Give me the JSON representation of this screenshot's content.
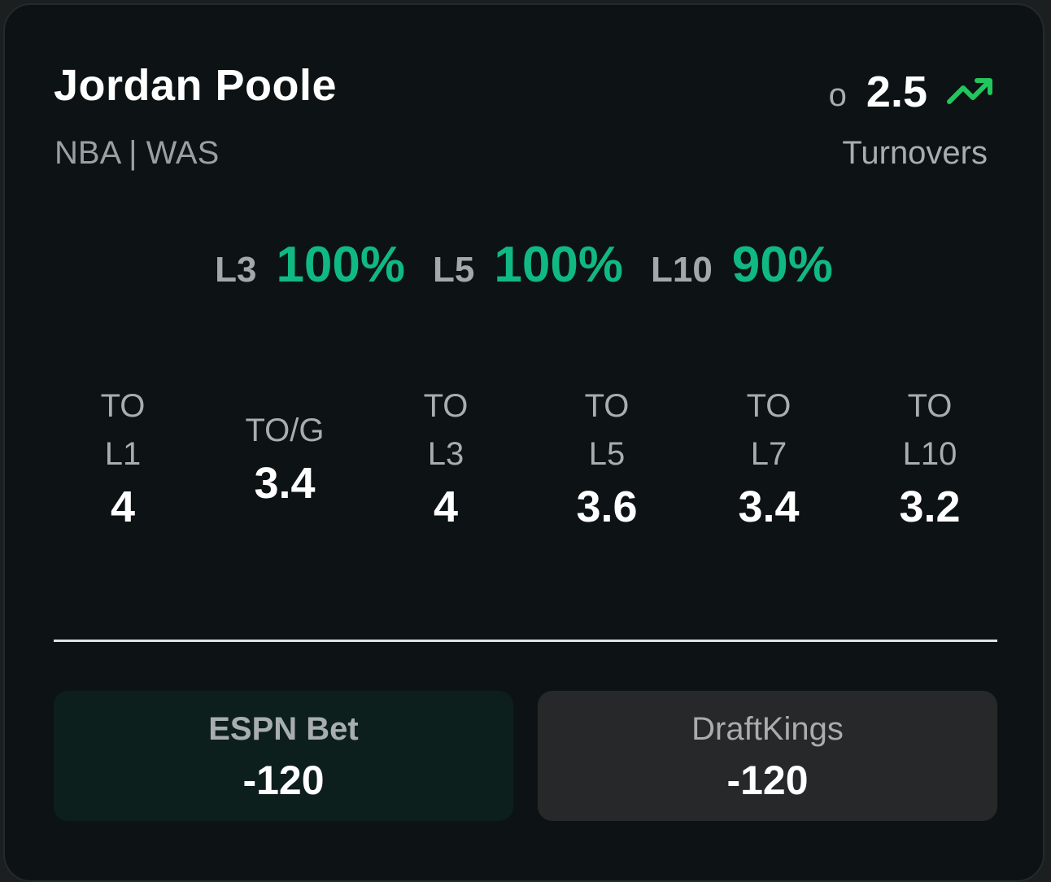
{
  "player": {
    "name": "Jordan Poole",
    "meta": "NBA | WAS"
  },
  "line": {
    "side": "o",
    "value": "2.5",
    "prop": "Turnovers",
    "trend_icon": "trending-up-icon",
    "trend_color": "#22c55e"
  },
  "hit_rates": [
    {
      "label": "L3",
      "value": "100%"
    },
    {
      "label": "L5",
      "value": "100%"
    },
    {
      "label": "L10",
      "value": "90%"
    }
  ],
  "stats": [
    {
      "label": "TO\nL1",
      "value": "4"
    },
    {
      "label": "TO/G",
      "value": "3.4"
    },
    {
      "label": "TO\nL3",
      "value": "4"
    },
    {
      "label": "TO\nL5",
      "value": "3.6"
    },
    {
      "label": "TO\nL7",
      "value": "3.4"
    },
    {
      "label": "TO\nL10",
      "value": "3.2"
    }
  ],
  "sportsbooks": [
    {
      "name": "ESPN Bet",
      "odds": "-120"
    },
    {
      "name": "DraftKings",
      "odds": "-120"
    }
  ],
  "colors": {
    "accent_green": "#10b981",
    "card_background": "#0d1314",
    "espn_background": "#0d1f1d",
    "draftkings_background": "#272829"
  }
}
